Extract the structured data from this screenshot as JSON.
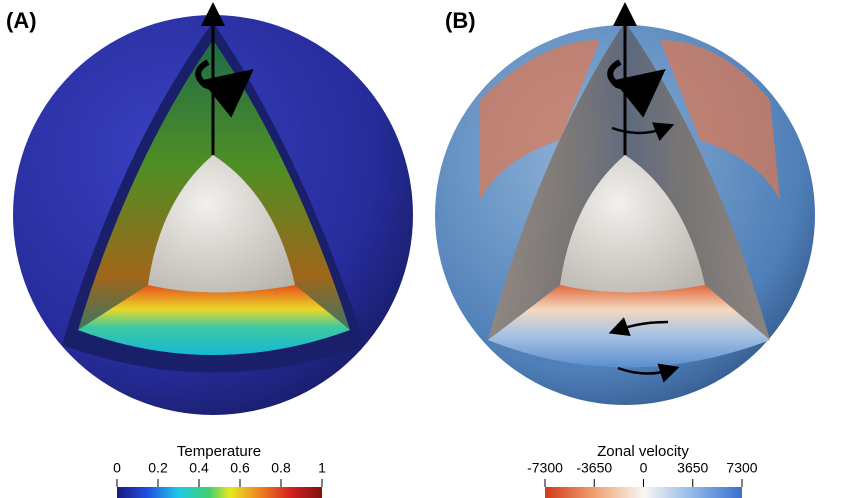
{
  "panels": [
    {
      "label": "(A)",
      "colorbar": {
        "title": "Temperature",
        "lim": [
          0,
          1
        ],
        "ticks": [
          0,
          0.2,
          0.4,
          0.6,
          0.8,
          1
        ]
      }
    },
    {
      "label": "(B)",
      "colorbar": {
        "title": "Zonal velocity",
        "lim": [
          -7300,
          7300
        ],
        "ticks": [
          -7300,
          -3650,
          0,
          3650,
          7300
        ]
      }
    }
  ]
}
